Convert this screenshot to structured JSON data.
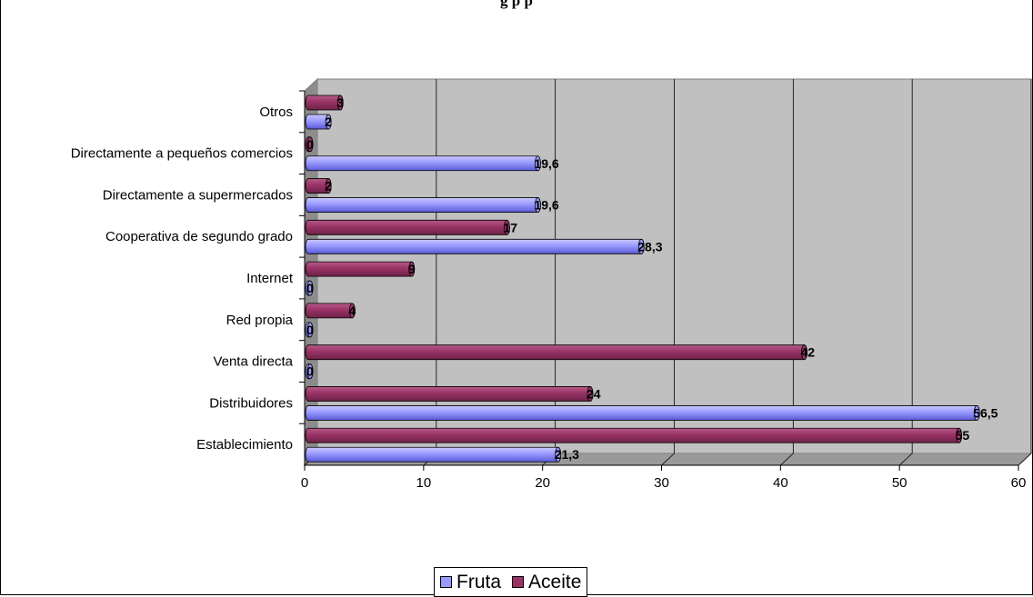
{
  "chart_data": {
    "type": "bar",
    "orientation": "horizontal",
    "three_d": true,
    "title": "",
    "categories": [
      "Establecimiento",
      "Distribuidores",
      "Venta directa",
      "Red propia",
      "Internet",
      "Cooperativa de segundo grado",
      "Directamente a supermercados",
      "Directamente a pequeños comercios",
      "Otros"
    ],
    "series": [
      {
        "name": "Fruta",
        "color": "#9999ff",
        "values": [
          21.3,
          56.5,
          0,
          0,
          0,
          28.3,
          19.6,
          19.6,
          2
        ],
        "labels": [
          "21,3",
          "56,5",
          "0",
          "0",
          "0",
          "28,3",
          "19,6",
          "19,6",
          "2"
        ]
      },
      {
        "name": "Aceite",
        "color": "#993366",
        "values": [
          55,
          24,
          42,
          4,
          9,
          17,
          2,
          0,
          3
        ],
        "labels": [
          "55",
          "24",
          "42",
          "4",
          "9",
          "17",
          "2",
          "0",
          "3"
        ]
      }
    ],
    "xlim": [
      0,
      60
    ],
    "xticks": [
      "0",
      "10",
      "20",
      "30",
      "40",
      "50",
      "60"
    ],
    "grid": true,
    "legend_position": "bottom"
  },
  "header": {
    "title_fragment": "g                                                                                    p            p"
  },
  "legend": {
    "items": [
      "Fruta",
      "Aceite"
    ]
  }
}
